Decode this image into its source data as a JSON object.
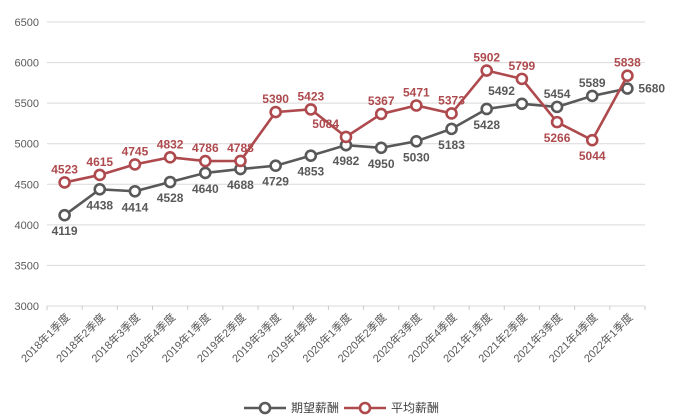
{
  "chart_data": {
    "type": "line",
    "categories": [
      "2018年1季度",
      "2018年2季度",
      "2018年3季度",
      "2018年4季度",
      "2019年1季度",
      "2019年2季度",
      "2019年3季度",
      "2019年4季度",
      "2020年1季度",
      "2020年2季度",
      "2020年3季度",
      "2020年4季度",
      "2021年1季度",
      "2021年2季度",
      "2021年3季度",
      "2021年4季度",
      "2022年1季度"
    ],
    "series": [
      {
        "name": "期望薪酬",
        "color": "#595959",
        "values": [
          4119,
          4438,
          4414,
          4528,
          4640,
          4688,
          4729,
          4853,
          4982,
          4950,
          5030,
          5183,
          5428,
          5492,
          5454,
          5589,
          5680
        ],
        "label_side": [
          "below",
          "below",
          "below",
          "below",
          "below",
          "below",
          "below",
          "below",
          "below",
          "below",
          "below",
          "below",
          "below",
          "above-left",
          "above",
          "above",
          "right"
        ]
      },
      {
        "name": "平均薪酬",
        "color": "#ae4a4e",
        "values": [
          4523,
          4615,
          4745,
          4832,
          4786,
          4788,
          5390,
          5423,
          5084,
          5367,
          5471,
          5373,
          5902,
          5799,
          5266,
          5044,
          5838
        ],
        "label_side": [
          "above",
          "above",
          "above",
          "above",
          "above",
          "above",
          "above",
          "above",
          "above-left",
          "above",
          "above",
          "above",
          "above",
          "above",
          "below",
          "below",
          "above"
        ]
      }
    ],
    "title": "",
    "xlabel": "",
    "ylabel": "",
    "ylim": [
      3000,
      6500
    ],
    "ytick_step": 500,
    "yticks": [
      3000,
      3500,
      4000,
      4500,
      5000,
      5500,
      6000,
      6500
    ],
    "grid": true,
    "gridline_color": "#d9d9d9",
    "tick_color": "#c9c9c9",
    "marker": "circle-open",
    "legend_position": "bottom"
  }
}
